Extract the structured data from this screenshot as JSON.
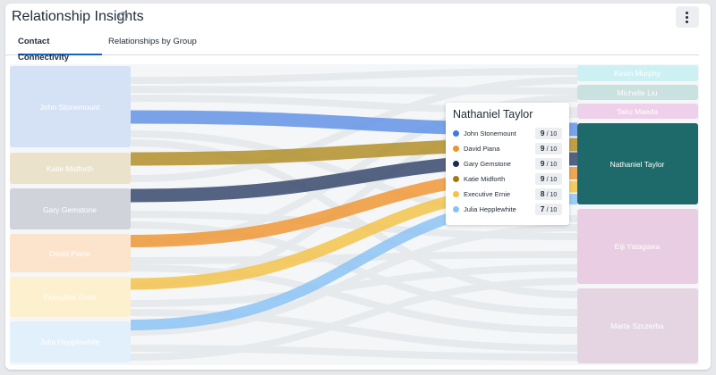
{
  "header": {
    "title": "Relationship Insights",
    "help_icon": "help-icon",
    "menu_icon": "kebab-icon"
  },
  "tabs": [
    {
      "label": "Contact Connectivity",
      "active": true
    },
    {
      "label": "Relationships by Group",
      "active": false
    }
  ],
  "left_nodes": [
    {
      "label": "John Stonemount",
      "color": "#5b8ee6"
    },
    {
      "label": "Katie Midforth",
      "color": "#b08a1e"
    },
    {
      "label": "Gary Gemstone",
      "color": "#233459"
    },
    {
      "label": "David Piana",
      "color": "#f0932b"
    },
    {
      "label": "Executive Ernie",
      "color": "#f5c242"
    },
    {
      "label": "Julia Hepplewhite",
      "color": "#87c2f5"
    }
  ],
  "right_nodes": [
    {
      "label": "Kevin Murphy",
      "color": "#bfeef0"
    },
    {
      "label": "Michelle Liu",
      "color": "#a9d6d2"
    },
    {
      "label": "Taku Maeda",
      "color": "#e5b9dd"
    },
    {
      "label": "Nathaniel Taylor",
      "color": "#1e6a6a"
    },
    {
      "label": "Eiji Yatagawa",
      "color": "#e6b5db"
    },
    {
      "label": "Marta Szczerba",
      "color": "#e6cfe0"
    }
  ],
  "tooltip": {
    "title": "Nathaniel Taylor",
    "rows": [
      {
        "name": "John Stonemount",
        "score": "9",
        "max": "/ 10",
        "color": "#3b7ddd"
      },
      {
        "name": "David Piana",
        "score": "9",
        "max": "/ 10",
        "color": "#f0932b"
      },
      {
        "name": "Gary Gemstone",
        "score": "9",
        "max": "/ 10",
        "color": "#1c2b4f"
      },
      {
        "name": "Katie Midforth",
        "score": "9",
        "max": "/ 10",
        "color": "#a37a10"
      },
      {
        "name": "Executive Ernie",
        "score": "8",
        "max": "/ 10",
        "color": "#f5c242"
      },
      {
        "name": "Julia Hepplewhite",
        "score": "7",
        "max": "/ 10",
        "color": "#87c2f5"
      }
    ]
  }
}
